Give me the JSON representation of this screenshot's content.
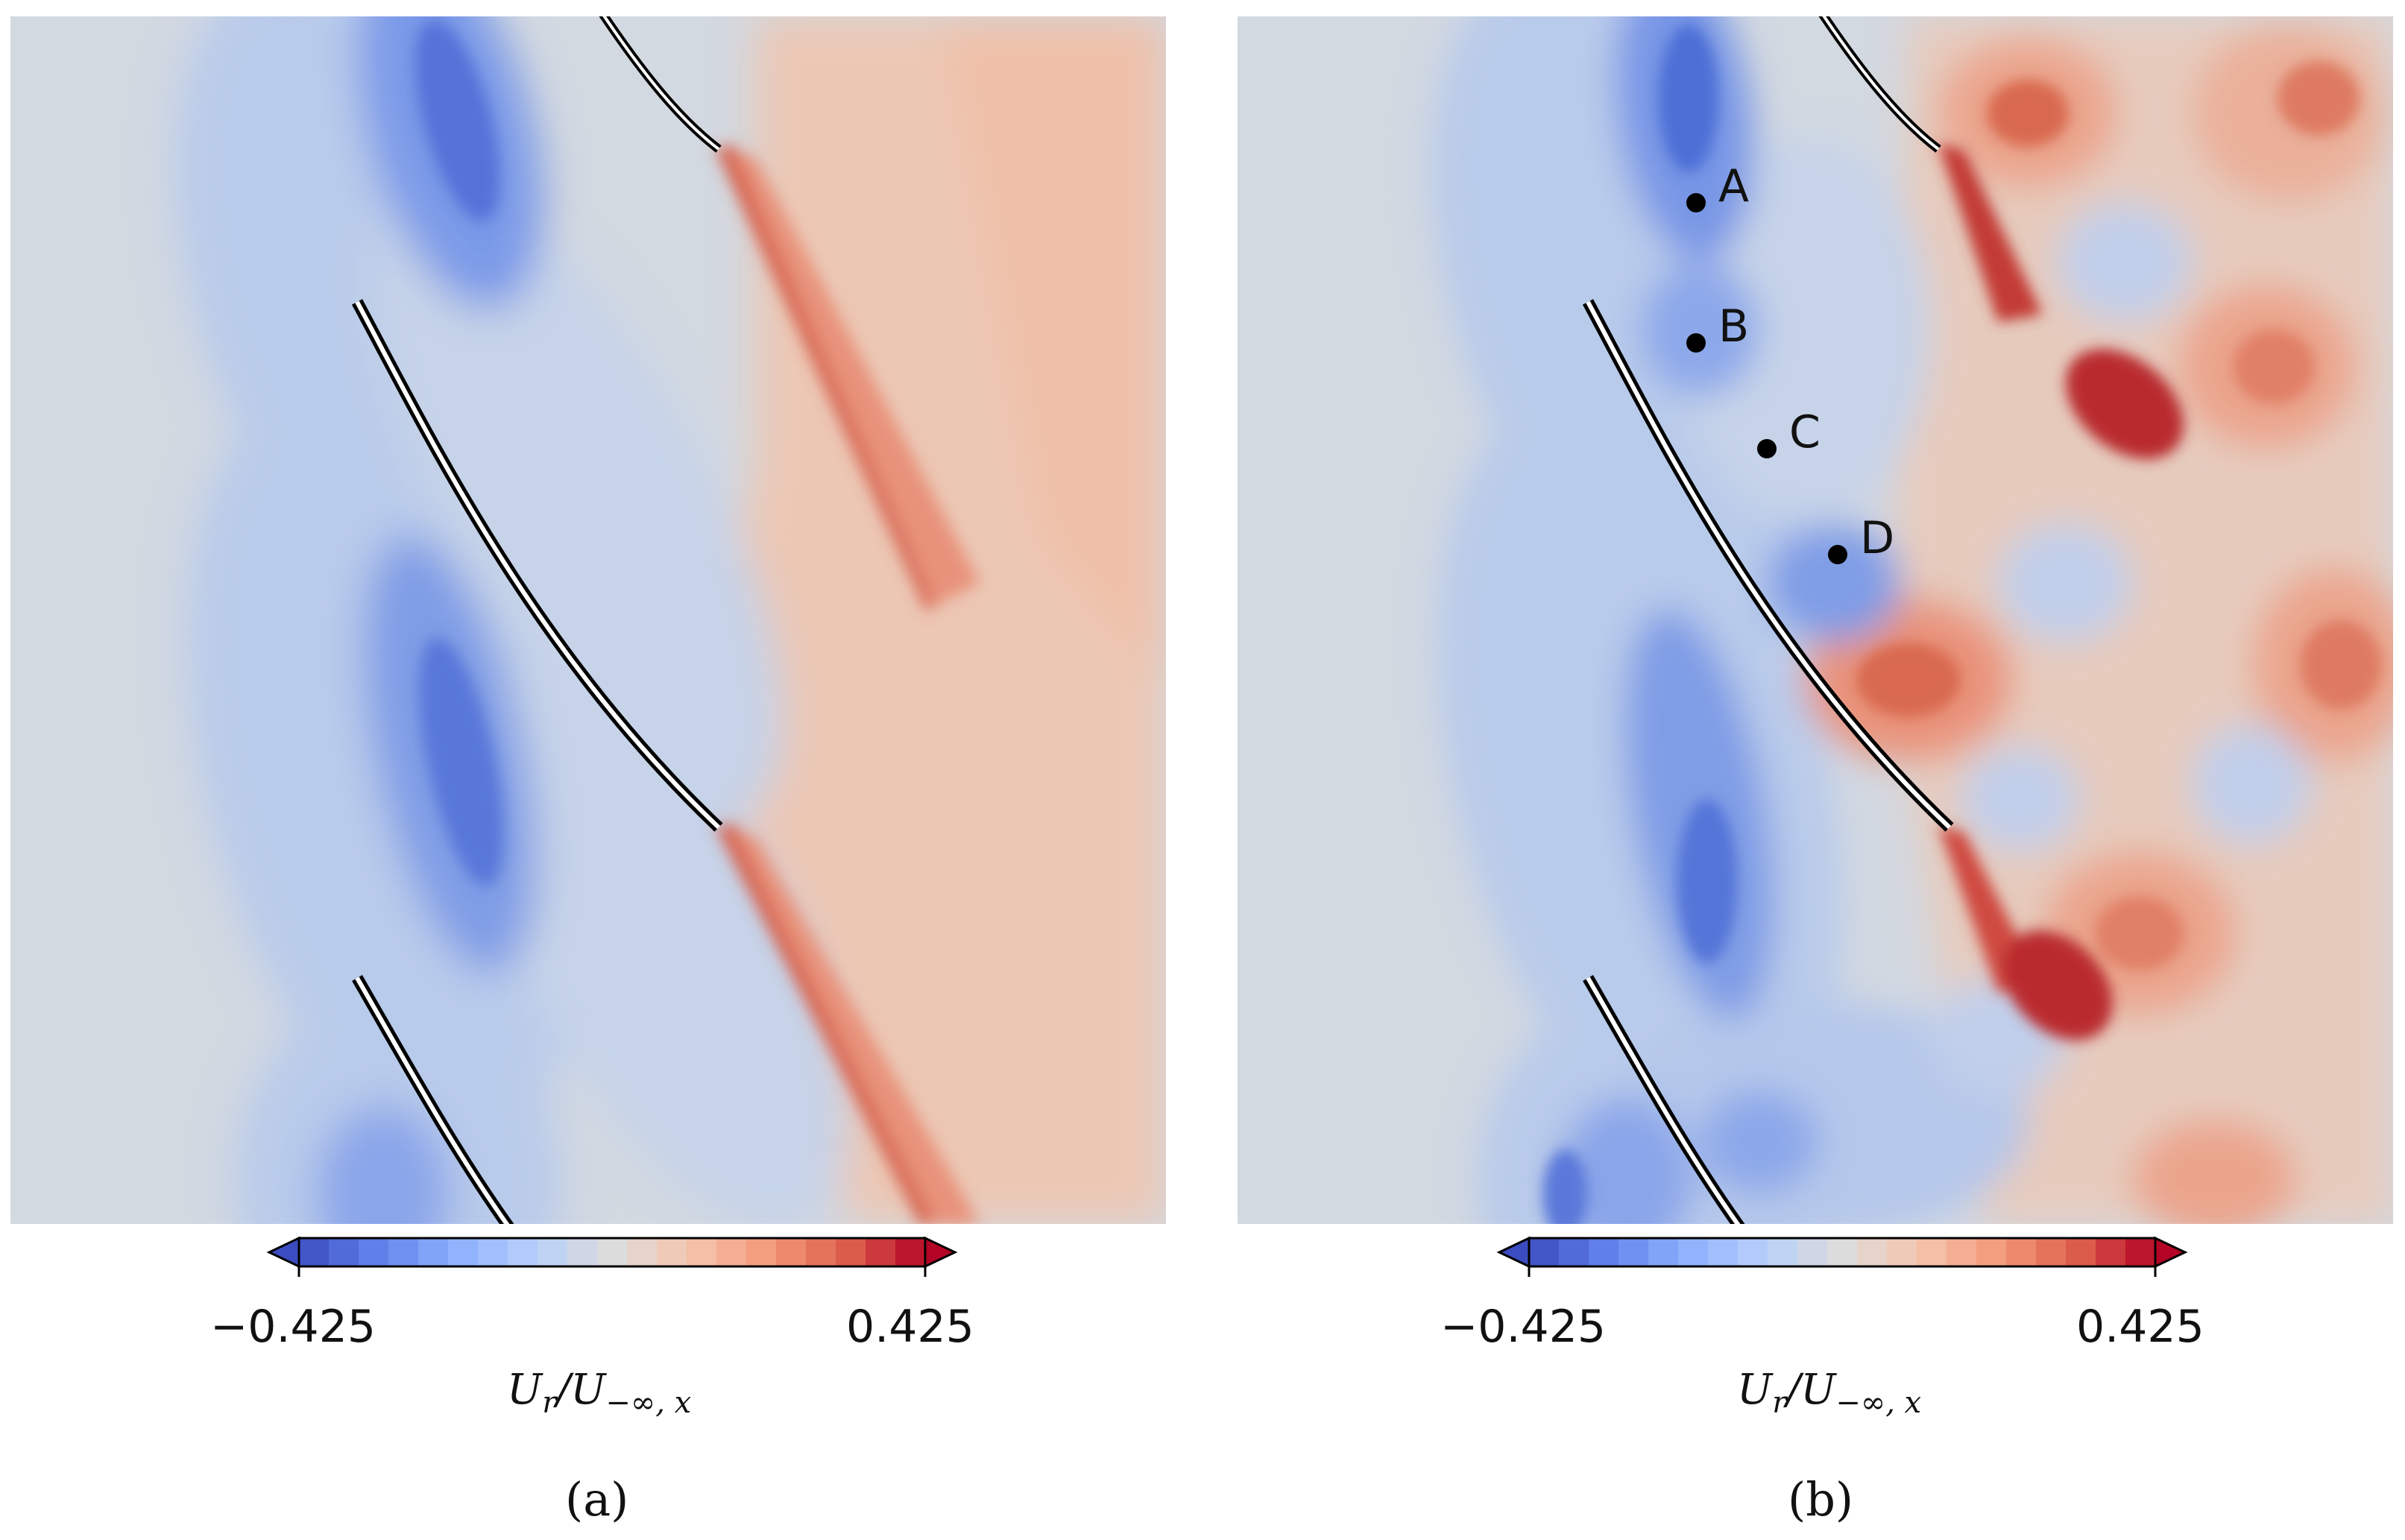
{
  "colormap": {
    "name": "coolwarm",
    "min_color": "#3b4cc0",
    "mid_color": "#dddcdc",
    "max_color": "#b40426",
    "under_color": "#3b4cc0",
    "over_color": "#b40426"
  },
  "panels": [
    {
      "id": "a",
      "caption": "(a)",
      "colorbar": {
        "min_label": "−0.425",
        "max_label": "0.425",
        "min": -0.425,
        "max": 0.425,
        "label_main": "U",
        "label_sub1": "r",
        "label_mid": "/U",
        "label_sub2": "−∞, x"
      },
      "points": []
    },
    {
      "id": "b",
      "caption": "(b)",
      "colorbar": {
        "min_label": "−0.425",
        "max_label": "0.425",
        "min": -0.425,
        "max": 0.425,
        "label_main": "U",
        "label_sub1": "r",
        "label_mid": "/U",
        "label_sub2": "−∞, x"
      },
      "points": [
        {
          "label": "A"
        },
        {
          "label": "B"
        },
        {
          "label": "C"
        },
        {
          "label": "D"
        }
      ]
    }
  ]
}
